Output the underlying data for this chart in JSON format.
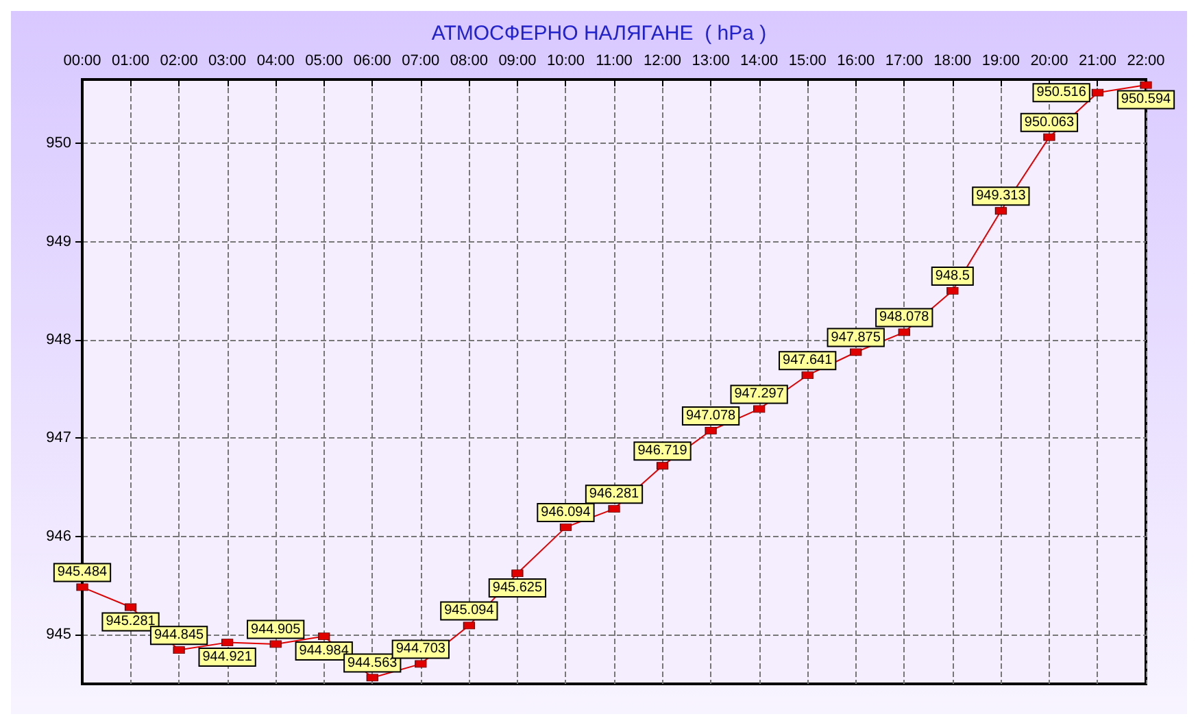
{
  "chart_data": {
    "type": "line",
    "title": "АТМОСФЕРНО НАЛЯГАНЕ  ( hPa )",
    "categories": [
      "00:00",
      "01:00",
      "02:00",
      "03:00",
      "04:00",
      "05:00",
      "06:00",
      "07:00",
      "08:00",
      "09:00",
      "10:00",
      "11:00",
      "12:00",
      "13:00",
      "14:00",
      "15:00",
      "16:00",
      "17:00",
      "18:00",
      "19:00",
      "20:00",
      "21:00",
      "22:00"
    ],
    "series": [
      {
        "color": "#e00000",
        "values": [
          945.484,
          945.281,
          944.845,
          944.921,
          944.905,
          944.984,
          944.563,
          944.703,
          945.094,
          945.625,
          946.094,
          946.281,
          946.719,
          947.078,
          947.297,
          947.641,
          947.875,
          948.078,
          948.5,
          949.313,
          950.063,
          950.516,
          950.594
        ]
      }
    ],
    "ylim": [
      944.5,
      950.65
    ],
    "yticks": [
      945,
      946,
      947,
      948,
      949,
      950
    ],
    "grid": true,
    "marker": "square",
    "line_style": "solid",
    "data_labels": true
  }
}
